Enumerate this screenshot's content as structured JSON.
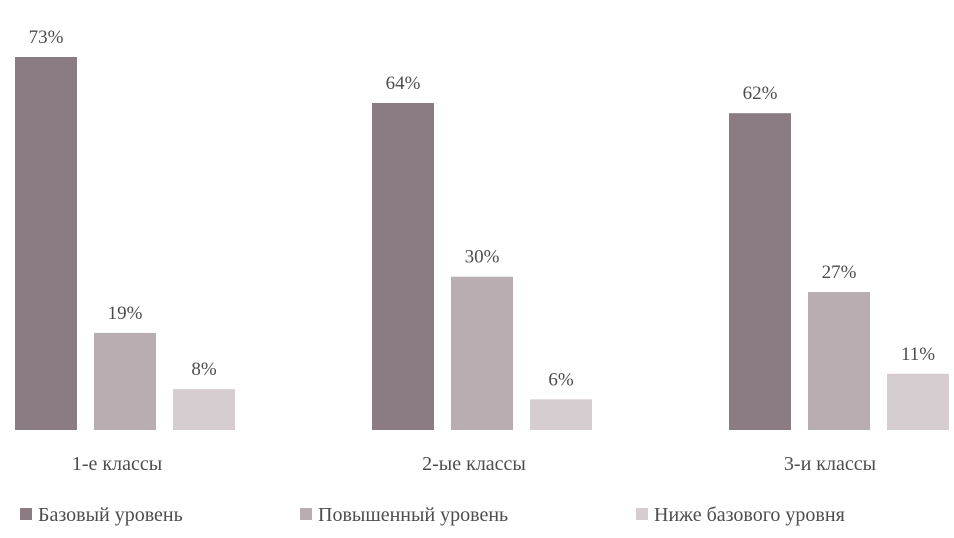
{
  "chart_data": {
    "type": "bar",
    "title": "",
    "xlabel": "",
    "ylabel": "",
    "categories": [
      "1-е классы",
      "2-ые классы",
      "3-и классы"
    ],
    "series": [
      {
        "name": "Базовый уровень",
        "values": [
          73,
          64,
          62
        ],
        "labels": [
          "73%",
          "64%",
          "62%"
        ],
        "color": "#8a7c82"
      },
      {
        "name": "Повышенный уровень",
        "values": [
          19,
          30,
          27
        ],
        "labels": [
          "19%",
          "30%",
          "27%"
        ],
        "color": "#b8adb1"
      },
      {
        "name": "Ниже базового уровня",
        "values": [
          8,
          6,
          11
        ],
        "labels": [
          "8%",
          "6%",
          "11%"
        ],
        "color": "#d6cdd0"
      }
    ],
    "ylim": [
      0,
      73
    ],
    "grid": false,
    "legend_position": "bottom"
  }
}
